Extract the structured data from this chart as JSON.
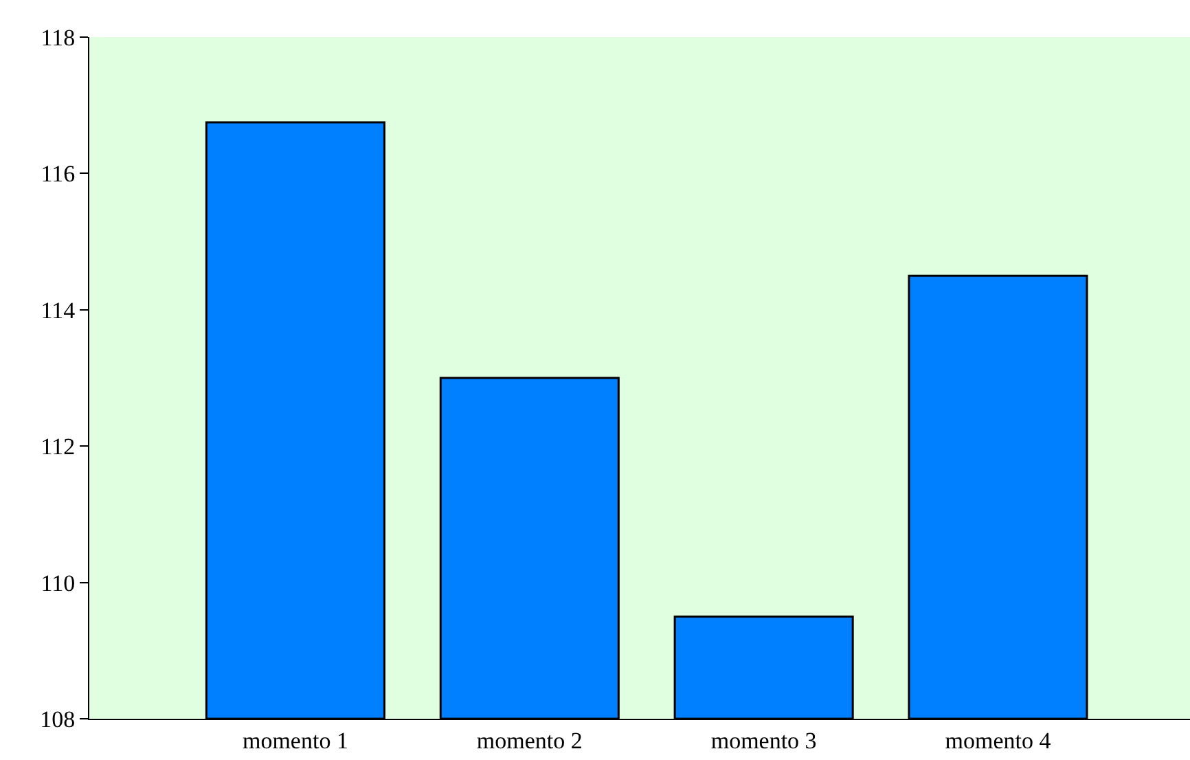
{
  "chart_data": {
    "type": "bar",
    "categories": [
      "momento 1",
      "momento 2",
      "momento 3",
      "momento 4"
    ],
    "values": [
      116.75,
      113.0,
      109.5,
      114.5
    ],
    "color": "#0080ff",
    "ylim": [
      108,
      118
    ],
    "yticks": [
      108,
      110,
      112,
      114,
      116,
      118
    ],
    "grid": false
  }
}
